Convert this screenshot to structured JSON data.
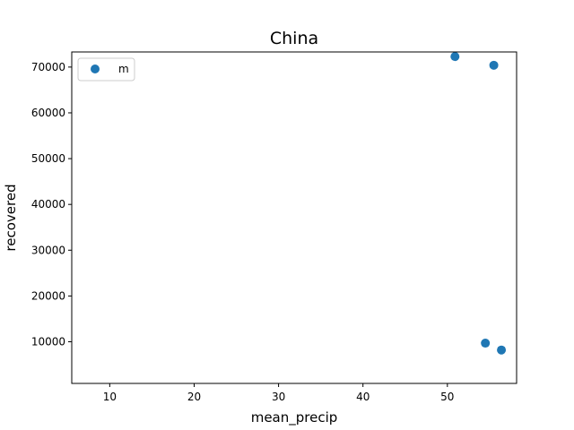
{
  "chart_data": {
    "type": "scatter",
    "title": "China",
    "xlabel": "mean_precip",
    "ylabel": "recovered",
    "xlim": [
      5.5,
      58.2
    ],
    "ylim": [
      900,
      73300
    ],
    "x_ticks": [
      10,
      20,
      30,
      40,
      50
    ],
    "y_ticks": [
      10000,
      20000,
      30000,
      40000,
      50000,
      60000,
      70000
    ],
    "grid": false,
    "legend_position": "top-left",
    "series": [
      {
        "name": "m",
        "color": "#1f77b4",
        "points": [
          {
            "x": 50.9,
            "y": 72300
          },
          {
            "x": 55.5,
            "y": 70400
          },
          {
            "x": 54.5,
            "y": 9700
          },
          {
            "x": 56.4,
            "y": 8200
          }
        ]
      }
    ]
  }
}
